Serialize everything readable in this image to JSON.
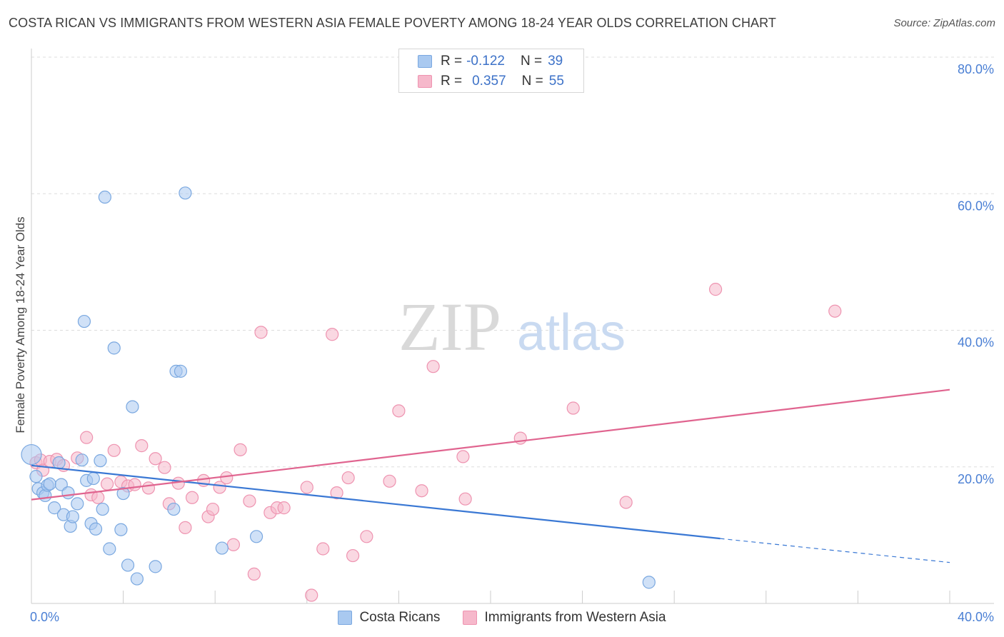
{
  "title": "COSTA RICAN VS IMMIGRANTS FROM WESTERN ASIA FEMALE POVERTY AMONG 18-24 YEAR OLDS CORRELATION CHART",
  "source": "Source: ZipAtlas.com",
  "watermark": {
    "zip": "ZIP",
    "atlas": "atlas"
  },
  "legend": {
    "rows": [
      {
        "r_label": "R =",
        "r_value": "-0.122",
        "n_label": "N =",
        "n_value": "39"
      },
      {
        "r_label": "R =",
        "r_value": "0.357",
        "n_label": "N =",
        "n_value": "55"
      }
    ]
  },
  "colors": {
    "blue_fill": "#a9c9f0",
    "blue_stroke": "#7aa8e0",
    "blue_line": "#3a78d4",
    "pink_fill": "#f6b8cb",
    "pink_stroke": "#ee93b0",
    "pink_line": "#e0648f",
    "tick_label": "#4a7fd4",
    "grid": "#dddddd"
  },
  "chart_data": {
    "type": "scatter",
    "title": "COSTA RICAN VS IMMIGRANTS FROM WESTERN ASIA FEMALE POVERTY AMONG 18-24 YEAR OLDS CORRELATION CHART",
    "xlabel": "",
    "ylabel": "Female Poverty Among 18-24 Year Olds",
    "xlim": [
      0,
      40
    ],
    "ylim": [
      0,
      80
    ],
    "x_tick_labels": [
      {
        "value": 0,
        "label": "0.0%"
      },
      {
        "value": 40,
        "label": "40.0%"
      }
    ],
    "y_tick_labels": [
      {
        "value": 20,
        "label": "20.0%"
      },
      {
        "value": 40,
        "label": "40.0%"
      },
      {
        "value": 60,
        "label": "60.0%"
      },
      {
        "value": 80,
        "label": "80.0%"
      }
    ],
    "series": [
      {
        "name": "Costa Ricans",
        "color": "blue",
        "points": [
          [
            0.0,
            21.8
          ],
          [
            0.2,
            18.6
          ],
          [
            0.3,
            16.8
          ],
          [
            0.5,
            16.2
          ],
          [
            0.6,
            15.8
          ],
          [
            0.7,
            17.3
          ],
          [
            0.8,
            17.5
          ],
          [
            1.0,
            14.0
          ],
          [
            1.2,
            20.6
          ],
          [
            1.3,
            17.4
          ],
          [
            1.4,
            13.0
          ],
          [
            1.6,
            16.2
          ],
          [
            1.7,
            11.3
          ],
          [
            1.8,
            12.7
          ],
          [
            2.0,
            14.6
          ],
          [
            2.2,
            21.0
          ],
          [
            2.3,
            41.3
          ],
          [
            2.4,
            18.0
          ],
          [
            2.6,
            11.7
          ],
          [
            2.7,
            18.3
          ],
          [
            2.8,
            10.9
          ],
          [
            3.0,
            20.9
          ],
          [
            3.1,
            13.8
          ],
          [
            3.2,
            59.5
          ],
          [
            3.4,
            8.0
          ],
          [
            3.6,
            37.4
          ],
          [
            3.9,
            10.8
          ],
          [
            4.0,
            16.1
          ],
          [
            4.2,
            5.6
          ],
          [
            4.4,
            28.8
          ],
          [
            4.6,
            3.6
          ],
          [
            5.4,
            5.4
          ],
          [
            6.2,
            13.8
          ],
          [
            6.3,
            34.0
          ],
          [
            6.5,
            34.0
          ],
          [
            6.7,
            60.1
          ],
          [
            8.3,
            8.1
          ],
          [
            9.8,
            9.8
          ],
          [
            26.9,
            3.1
          ]
        ]
      },
      {
        "name": "Immigrants from Western Asia",
        "color": "pink",
        "points": [
          [
            0.2,
            20.6
          ],
          [
            0.4,
            21.0
          ],
          [
            0.5,
            19.5
          ],
          [
            0.8,
            20.8
          ],
          [
            1.1,
            21.1
          ],
          [
            1.4,
            20.2
          ],
          [
            2.0,
            21.3
          ],
          [
            2.4,
            24.3
          ],
          [
            2.6,
            15.9
          ],
          [
            2.9,
            15.5
          ],
          [
            3.3,
            17.5
          ],
          [
            3.6,
            22.4
          ],
          [
            3.9,
            17.8
          ],
          [
            4.2,
            17.2
          ],
          [
            4.5,
            17.4
          ],
          [
            4.8,
            23.1
          ],
          [
            5.1,
            16.9
          ],
          [
            5.4,
            21.2
          ],
          [
            5.8,
            19.9
          ],
          [
            6.0,
            14.6
          ],
          [
            6.4,
            17.6
          ],
          [
            6.7,
            11.1
          ],
          [
            7.0,
            15.5
          ],
          [
            7.5,
            18.0
          ],
          [
            7.7,
            12.7
          ],
          [
            7.9,
            13.8
          ],
          [
            8.2,
            17.0
          ],
          [
            8.5,
            18.4
          ],
          [
            8.8,
            8.6
          ],
          [
            9.1,
            22.5
          ],
          [
            9.5,
            15.0
          ],
          [
            9.7,
            4.3
          ],
          [
            10.0,
            39.7
          ],
          [
            10.4,
            13.3
          ],
          [
            10.7,
            14.0
          ],
          [
            11.0,
            14.0
          ],
          [
            12.0,
            17.0
          ],
          [
            12.2,
            1.2
          ],
          [
            12.7,
            8.0
          ],
          [
            13.1,
            39.4
          ],
          [
            13.3,
            16.2
          ],
          [
            13.8,
            18.4
          ],
          [
            14.0,
            7.0
          ],
          [
            14.6,
            9.8
          ],
          [
            15.6,
            17.9
          ],
          [
            16.0,
            28.2
          ],
          [
            17.0,
            16.5
          ],
          [
            17.5,
            34.7
          ],
          [
            18.8,
            21.5
          ],
          [
            18.9,
            15.3
          ],
          [
            21.3,
            24.2
          ],
          [
            23.6,
            28.6
          ],
          [
            25.9,
            14.8
          ],
          [
            29.8,
            46.0
          ],
          [
            35.0,
            42.8
          ]
        ]
      }
    ],
    "trend_lines": [
      {
        "series": "Costa Ricans",
        "solid_from": [
          0,
          20.2
        ],
        "solid_to": [
          30.0,
          9.5
        ],
        "dashed_to": [
          40.0,
          6.0
        ]
      },
      {
        "series": "Immigrants from Western Asia",
        "from": [
          0,
          15.2
        ],
        "to": [
          40.0,
          31.3
        ]
      }
    ]
  },
  "bottom_legend": [
    {
      "label": "Costa Ricans"
    },
    {
      "label": "Immigrants from Western Asia"
    }
  ]
}
